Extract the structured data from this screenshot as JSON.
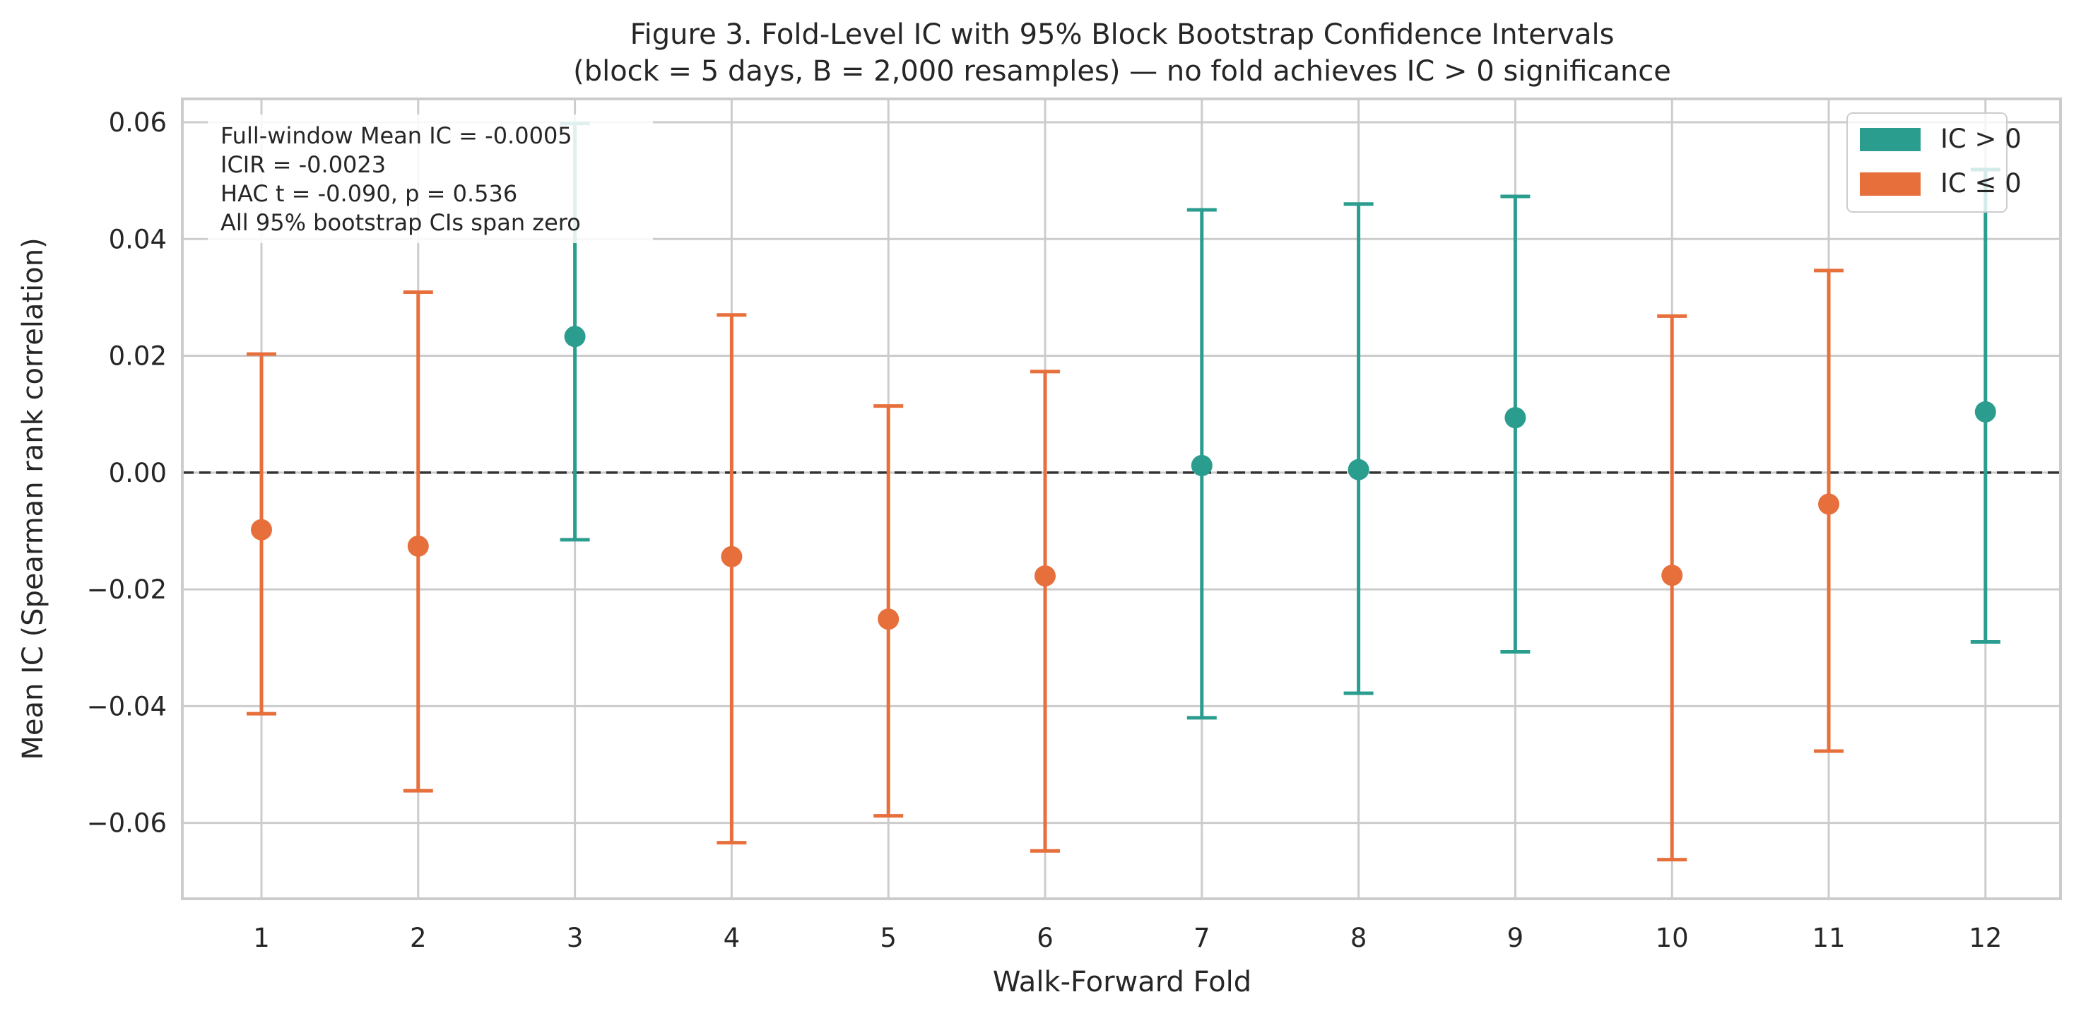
{
  "chart_data": {
    "type": "errorbar",
    "title_line1": "Figure 3. Fold-Level IC with 95% Block Bootstrap Confidence Intervals",
    "title_line2": "(block = 5 days, B = 2,000 resamples) — no fold achieves IC > 0 significance",
    "xlabel": "Walk-Forward Fold",
    "ylabel": "Mean IC (Spearman rank correlation)",
    "categories": [
      "1",
      "2",
      "3",
      "4",
      "5",
      "6",
      "7",
      "8",
      "9",
      "10",
      "11",
      "12"
    ],
    "values": [
      -0.0098,
      -0.0126,
      0.0233,
      -0.0144,
      -0.0251,
      -0.0177,
      0.0012,
      0.0005,
      0.0094,
      -0.0176,
      -0.0054,
      0.0104
    ],
    "ci_lower": [
      -0.0413,
      -0.0545,
      -0.0115,
      -0.0634,
      -0.0588,
      -0.0648,
      -0.042,
      -0.0378,
      -0.0307,
      -0.0663,
      -0.0477,
      -0.029
    ],
    "ci_upper": [
      0.0203,
      0.0309,
      0.0598,
      0.027,
      0.0114,
      0.0173,
      0.045,
      0.046,
      0.0473,
      0.0268,
      0.0346,
      0.0519
    ],
    "ylim": [
      -0.073,
      0.064
    ],
    "yticks": [
      0.06,
      0.04,
      0.02,
      0.0,
      -0.02,
      -0.04,
      -0.06
    ],
    "ytick_labels": [
      "0.06",
      "0.04",
      "0.02",
      "0.00",
      "−0.02",
      "−0.04",
      "−0.06"
    ],
    "reference_line": 0,
    "grid": true,
    "legend_position": "top-right",
    "legend": [
      {
        "label": "IC > 0",
        "color": "#2a9d8f"
      },
      {
        "label": "IC ≤ 0",
        "color": "#e76f3c"
      }
    ],
    "annotation_lines": [
      "Full-window Mean IC = -0.0005",
      "ICIR = -0.0023",
      "HAC t = -0.090,  p = 0.536",
      "All 95% bootstrap CIs span zero"
    ],
    "colors": {
      "positive": "#2a9d8f",
      "negative": "#e76f3c",
      "grid": "#cccccc",
      "reference": "#333333"
    }
  }
}
